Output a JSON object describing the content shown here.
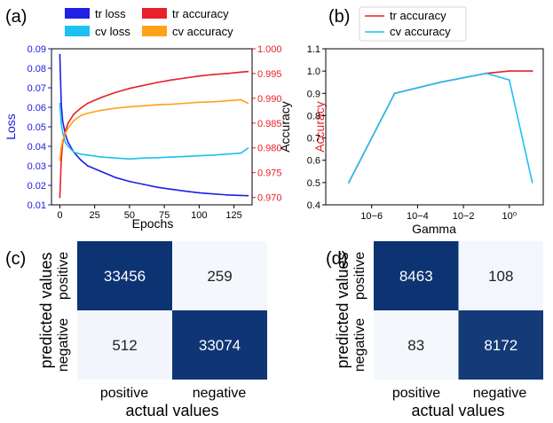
{
  "colors": {
    "tr_loss": "#1f1fe6",
    "cv_loss": "#1ec0ee",
    "tr_accuracy": "#e8202a",
    "cv_accuracy": "#ffa21a",
    "heat_high": "#0c3372",
    "heat_low": "#f4f8fd",
    "loss_axis": "#1a1adb",
    "acc_axis": "#e8202a"
  },
  "chart_data": [
    {
      "panel_label": "(a)",
      "type": "line",
      "xlabel": "Epochs",
      "ylabel": "Loss",
      "y2label": "Accuracy",
      "xlim": [
        -6,
        138
      ],
      "ylim": [
        0.01,
        0.09
      ],
      "y2lim": [
        0.9685,
        1.0
      ],
      "xticks": [
        "0",
        "25",
        "50",
        "75",
        "100",
        "125"
      ],
      "yticks": [
        "0.01",
        "0.02",
        "0.03",
        "0.04",
        "0.05",
        "0.06",
        "0.07",
        "0.08",
        "0.09"
      ],
      "y2ticks": [
        "0.970",
        "0.975",
        "0.980",
        "0.985",
        "0.990",
        "0.995",
        "1.000"
      ],
      "legend_placement": "top",
      "series": [
        {
          "name": "tr loss",
          "axis": "left",
          "x": [
            0,
            1,
            2,
            4,
            6,
            10,
            15,
            20,
            30,
            40,
            50,
            60,
            70,
            80,
            90,
            100,
            110,
            120,
            130,
            135
          ],
          "values": [
            0.087,
            0.062,
            0.053,
            0.046,
            0.042,
            0.037,
            0.033,
            0.03,
            0.027,
            0.024,
            0.022,
            0.0205,
            0.019,
            0.018,
            0.017,
            0.0162,
            0.0156,
            0.0151,
            0.0148,
            0.0147
          ]
        },
        {
          "name": "cv loss",
          "axis": "left",
          "x": [
            0,
            1,
            2,
            4,
            6,
            10,
            15,
            20,
            30,
            40,
            50,
            60,
            70,
            80,
            90,
            100,
            110,
            120,
            130,
            135
          ],
          "values": [
            0.062,
            0.052,
            0.047,
            0.042,
            0.04,
            0.037,
            0.036,
            0.0355,
            0.0345,
            0.034,
            0.0335,
            0.034,
            0.0342,
            0.0345,
            0.0348,
            0.0352,
            0.0355,
            0.036,
            0.0365,
            0.039
          ]
        },
        {
          "name": "tr accuracy",
          "axis": "right",
          "x": [
            0,
            1,
            2,
            4,
            6,
            10,
            15,
            20,
            30,
            40,
            50,
            60,
            70,
            80,
            90,
            100,
            110,
            120,
            130,
            135
          ],
          "values": [
            0.97,
            0.9775,
            0.981,
            0.9835,
            0.985,
            0.9868,
            0.988,
            0.989,
            0.9902,
            0.9912,
            0.992,
            0.9926,
            0.9932,
            0.9937,
            0.9941,
            0.9945,
            0.9948,
            0.995,
            0.9953,
            0.9954
          ]
        },
        {
          "name": "cv accuracy",
          "axis": "right",
          "x": [
            0,
            1,
            2,
            4,
            6,
            10,
            15,
            20,
            30,
            40,
            50,
            60,
            70,
            80,
            90,
            100,
            110,
            120,
            130,
            135
          ],
          "values": [
            0.9775,
            0.98,
            0.9815,
            0.983,
            0.984,
            0.9855,
            0.9865,
            0.987,
            0.9876,
            0.988,
            0.9883,
            0.9885,
            0.9887,
            0.9888,
            0.989,
            0.9892,
            0.9893,
            0.9895,
            0.9897,
            0.989
          ]
        }
      ]
    },
    {
      "panel_label": "(b)",
      "type": "line",
      "xlabel": "Gamma",
      "ylabel": "Accuracy",
      "x_scale": "log",
      "xlim": [
        1e-08,
        30
      ],
      "ylim": [
        0.4,
        1.1
      ],
      "xticks": [
        "10−6",
        "10−4",
        "10−2",
        "10⁰"
      ],
      "xtick_values": [
        1e-06,
        0.0001,
        0.01,
        1
      ],
      "yticks": [
        "0.4",
        "0.5",
        "0.6",
        "0.7",
        "0.8",
        "0.9",
        "1.0",
        "1.1"
      ],
      "legend_placement": "top-left",
      "series": [
        {
          "name": "tr accuracy",
          "x": [
            1e-07,
            1e-05,
            0.001,
            0.1,
            1,
            10
          ],
          "values": [
            0.5,
            0.9,
            0.95,
            0.99,
            1.0,
            1.0
          ]
        },
        {
          "name": "cv accuracy",
          "x": [
            1e-07,
            1e-05,
            0.001,
            0.1,
            1,
            10
          ],
          "values": [
            0.5,
            0.9,
            0.95,
            0.99,
            0.96,
            0.5
          ]
        }
      ]
    },
    {
      "panel_label": "(c)",
      "type": "heatmap",
      "xlabel": "actual values",
      "ylabel": "predicted values",
      "col_labels": [
        "positive",
        "negative"
      ],
      "row_labels": [
        "positive",
        "negative"
      ],
      "matrix": [
        [
          33456,
          259
        ],
        [
          512,
          33074
        ]
      ]
    },
    {
      "panel_label": "(d)",
      "type": "heatmap",
      "xlabel": "actual values",
      "ylabel": "predicted values",
      "col_labels": [
        "positive",
        "negative"
      ],
      "row_labels": [
        "positive",
        "negative"
      ],
      "matrix": [
        [
          8463,
          108
        ],
        [
          83,
          8172
        ]
      ]
    }
  ]
}
